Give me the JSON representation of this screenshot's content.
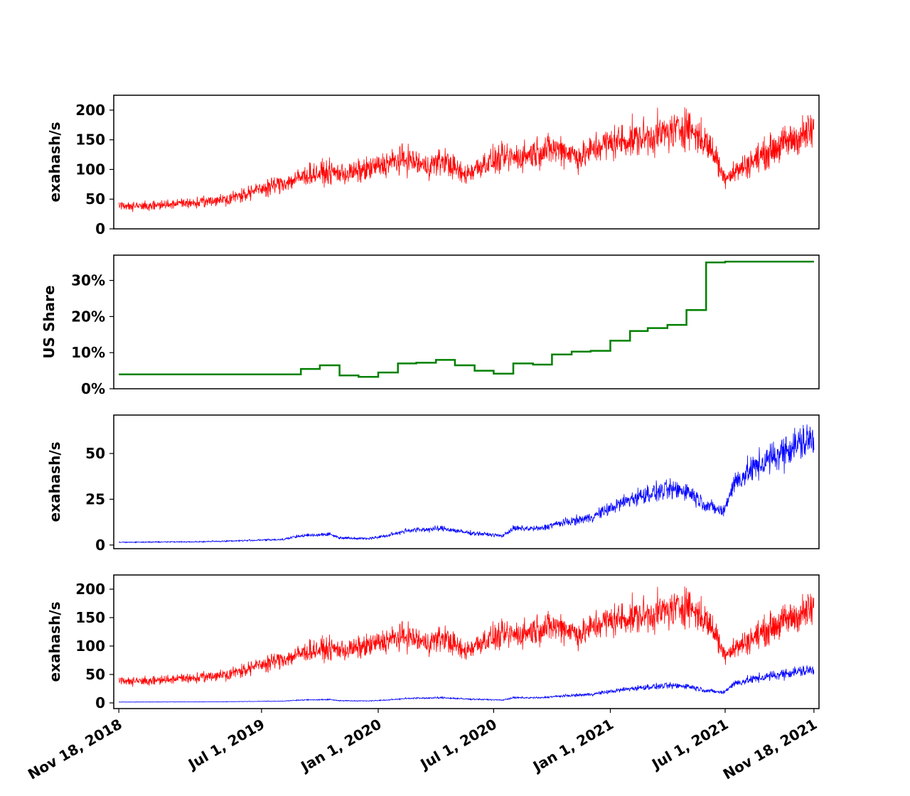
{
  "chart_data": [
    {
      "panel": "total-hashrate",
      "type": "line",
      "ylabel": "exahash/s",
      "ylim": [
        0,
        225
      ],
      "yticks": [
        0,
        50,
        100,
        150,
        200
      ],
      "series": [
        {
          "color": "#ff0000",
          "points": [
            [
              "2018-11-18",
              40
            ],
            [
              "2019-01-01",
              38
            ],
            [
              "2019-02-15",
              42
            ],
            [
              "2019-04-01",
              45
            ],
            [
              "2019-05-15",
              52
            ],
            [
              "2019-06-15",
              62
            ],
            [
              "2019-07-15",
              72
            ],
            [
              "2019-08-15",
              80
            ],
            [
              "2019-09-15",
              92
            ],
            [
              "2019-10-15",
              95
            ],
            [
              "2019-11-15",
              93
            ],
            [
              "2019-12-15",
              100
            ],
            [
              "2020-01-15",
              110
            ],
            [
              "2020-02-15",
              118
            ],
            [
              "2020-03-15",
              105
            ],
            [
              "2020-04-15",
              115
            ],
            [
              "2020-05-15",
              90
            ],
            [
              "2020-06-15",
              110
            ],
            [
              "2020-07-15",
              118
            ],
            [
              "2020-08-15",
              122
            ],
            [
              "2020-09-15",
              132
            ],
            [
              "2020-10-15",
              135
            ],
            [
              "2020-11-15",
              120
            ],
            [
              "2020-12-15",
              140
            ],
            [
              "2021-01-15",
              148
            ],
            [
              "2021-02-15",
              152
            ],
            [
              "2021-03-15",
              158
            ],
            [
              "2021-04-15",
              165
            ],
            [
              "2021-05-01",
              175
            ],
            [
              "2021-05-15",
              160
            ],
            [
              "2021-06-01",
              145
            ],
            [
              "2021-06-15",
              125
            ],
            [
              "2021-06-28",
              88
            ],
            [
              "2021-07-15",
              95
            ],
            [
              "2021-08-15",
              115
            ],
            [
              "2021-09-15",
              135
            ],
            [
              "2021-10-15",
              150
            ],
            [
              "2021-11-18",
              165
            ]
          ]
        }
      ]
    },
    {
      "panel": "us-share",
      "type": "line",
      "ylabel": "US Share",
      "ylim": [
        0,
        0.37
      ],
      "yticks": [
        0,
        0.1,
        0.2,
        0.3
      ],
      "ytick_labels": [
        "0%",
        "10%",
        "20%",
        "30%"
      ],
      "step": true,
      "series": [
        {
          "color": "#008000",
          "points": [
            [
              "2018-11-18",
              0.04
            ],
            [
              "2019-09-01",
              0.055
            ],
            [
              "2019-10-01",
              0.065
            ],
            [
              "2019-11-01",
              0.037
            ],
            [
              "2019-12-01",
              0.033
            ],
            [
              "2020-01-01",
              0.045
            ],
            [
              "2020-02-01",
              0.07
            ],
            [
              "2020-03-01",
              0.072
            ],
            [
              "2020-04-01",
              0.08
            ],
            [
              "2020-05-01",
              0.065
            ],
            [
              "2020-06-01",
              0.05
            ],
            [
              "2020-07-01",
              0.042
            ],
            [
              "2020-08-01",
              0.07
            ],
            [
              "2020-09-01",
              0.067
            ],
            [
              "2020-10-01",
              0.095
            ],
            [
              "2020-11-01",
              0.103
            ],
            [
              "2020-12-01",
              0.105
            ],
            [
              "2021-01-01",
              0.133
            ],
            [
              "2021-02-01",
              0.16
            ],
            [
              "2021-03-01",
              0.168
            ],
            [
              "2021-04-01",
              0.177
            ],
            [
              "2021-05-01",
              0.218
            ],
            [
              "2021-06-01",
              0.35
            ],
            [
              "2021-07-01",
              0.352
            ],
            [
              "2021-11-18",
              0.352
            ]
          ]
        }
      ]
    },
    {
      "panel": "us-hashrate",
      "type": "line",
      "ylabel": "exahash/s",
      "ylim": [
        -2,
        71
      ],
      "yticks": [
        0,
        25,
        50
      ],
      "series": [
        {
          "color": "#0000ff",
          "points": [
            [
              "2018-11-18",
              1.5
            ],
            [
              "2019-04-01",
              1.8
            ],
            [
              "2019-08-01",
              3
            ],
            [
              "2019-09-01",
              5
            ],
            [
              "2019-10-15",
              6
            ],
            [
              "2019-11-01",
              4
            ],
            [
              "2019-12-15",
              3.5
            ],
            [
              "2020-01-15",
              5
            ],
            [
              "2020-02-15",
              8
            ],
            [
              "2020-03-15",
              8.5
            ],
            [
              "2020-04-15",
              9
            ],
            [
              "2020-05-15",
              7
            ],
            [
              "2020-06-15",
              6
            ],
            [
              "2020-07-15",
              5
            ],
            [
              "2020-08-01",
              9
            ],
            [
              "2020-09-15",
              9
            ],
            [
              "2020-10-01",
              11
            ],
            [
              "2020-11-01",
              13
            ],
            [
              "2020-12-01",
              15
            ],
            [
              "2021-01-01",
              20
            ],
            [
              "2021-02-01",
              25
            ],
            [
              "2021-03-01",
              28
            ],
            [
              "2021-04-01",
              30
            ],
            [
              "2021-05-01",
              30
            ],
            [
              "2021-06-01",
              22
            ],
            [
              "2021-06-28",
              18
            ],
            [
              "2021-07-15",
              34
            ],
            [
              "2021-08-15",
              42
            ],
            [
              "2021-09-15",
              48
            ],
            [
              "2021-10-15",
              54
            ],
            [
              "2021-11-18",
              58
            ]
          ]
        }
      ]
    },
    {
      "panel": "combined",
      "type": "line",
      "ylabel": "exahash/s",
      "ylim": [
        -10,
        225
      ],
      "yticks": [
        0,
        50,
        100,
        150,
        200
      ],
      "series": [
        {
          "color": "#ff0000",
          "ref": 0
        },
        {
          "color": "#0000ff",
          "ref": 2
        }
      ]
    }
  ],
  "x_axis": {
    "range": [
      "2018-11-10",
      "2021-11-26"
    ],
    "ticks": [
      {
        "date": "2018-11-18",
        "label": "Nov 18, 2018"
      },
      {
        "date": "2019-07-01",
        "label": "Jul 1, 2019"
      },
      {
        "date": "2020-01-01",
        "label": "Jan 1, 2020"
      },
      {
        "date": "2020-07-01",
        "label": "Jul 1, 2020"
      },
      {
        "date": "2021-01-01",
        "label": "Jan 1, 2021"
      },
      {
        "date": "2021-07-01",
        "label": "Jul 1, 2021"
      },
      {
        "date": "2021-11-18",
        "label": "Nov 18, 2021"
      }
    ]
  }
}
